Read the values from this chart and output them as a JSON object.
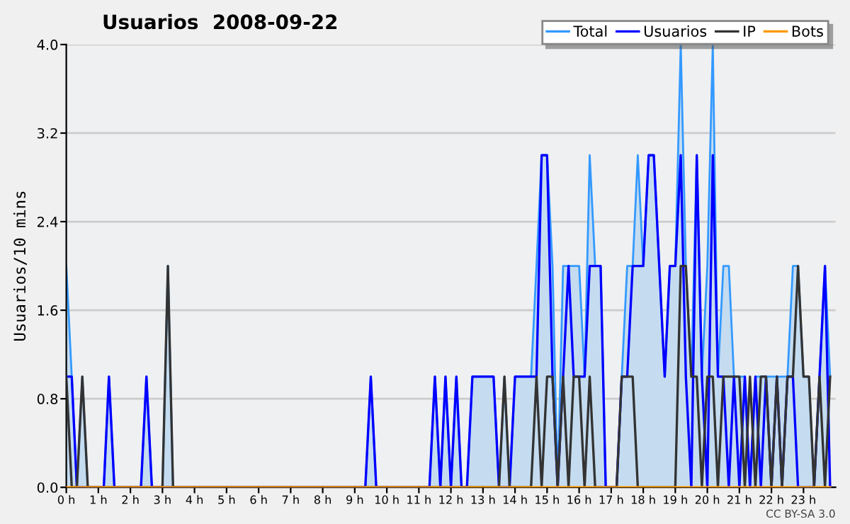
{
  "chart_data": {
    "type": "line",
    "title": "Usuarios  2008-09-22",
    "ylabel": "Usuarios/10 mins",
    "annotations": [
      "CC BY-SA 3.0"
    ],
    "x": [
      0,
      0.17,
      0.33,
      0.5,
      0.67,
      0.83,
      1,
      1.17,
      1.33,
      1.5,
      1.67,
      1.83,
      2,
      2.17,
      2.33,
      2.5,
      2.67,
      2.83,
      3,
      3.17,
      3.33,
      3.5,
      3.67,
      3.83,
      4,
      4.17,
      4.33,
      4.5,
      4.67,
      4.83,
      5,
      5.17,
      5.33,
      5.5,
      5.67,
      5.83,
      6,
      6.17,
      6.33,
      6.5,
      6.67,
      6.83,
      7,
      7.17,
      7.33,
      7.5,
      7.67,
      7.83,
      8,
      8.17,
      8.33,
      8.5,
      8.67,
      8.83,
      9,
      9.17,
      9.33,
      9.5,
      9.67,
      9.83,
      10,
      10.17,
      10.33,
      10.5,
      10.67,
      10.83,
      11,
      11.17,
      11.33,
      11.5,
      11.67,
      11.83,
      12,
      12.17,
      12.33,
      12.5,
      12.67,
      12.83,
      13,
      13.17,
      13.33,
      13.5,
      13.67,
      13.83,
      14,
      14.17,
      14.33,
      14.5,
      14.67,
      14.83,
      15,
      15.17,
      15.33,
      15.5,
      15.67,
      15.83,
      16,
      16.17,
      16.33,
      16.5,
      16.67,
      16.83,
      17,
      17.17,
      17.33,
      17.5,
      17.67,
      17.83,
      18,
      18.17,
      18.33,
      18.5,
      18.67,
      18.83,
      19,
      19.17,
      19.33,
      19.5,
      19.67,
      19.83,
      20,
      20.17,
      20.33,
      20.5,
      20.67,
      20.83,
      21,
      21.17,
      21.33,
      21.5,
      21.67,
      21.83,
      22,
      22.17,
      22.33,
      22.5,
      22.67,
      22.83,
      23,
      23.17,
      23.33,
      23.5,
      23.67,
      23.83
    ],
    "series": [
      {
        "name": "Total",
        "type": "area",
        "color": "#3399ff",
        "values": [
          2,
          1,
          0,
          1,
          0,
          0,
          0,
          0,
          1,
          0,
          0,
          0,
          0,
          0,
          0,
          1,
          0,
          0,
          0,
          2,
          0,
          0,
          0,
          0,
          0,
          0,
          0,
          0,
          0,
          0,
          0,
          0,
          0,
          0,
          0,
          0,
          0,
          0,
          0,
          0,
          0,
          0,
          0,
          0,
          0,
          0,
          0,
          0,
          0,
          0,
          0,
          0,
          0,
          0,
          0,
          0,
          0,
          1,
          0,
          0,
          0,
          0,
          0,
          0,
          0,
          0,
          0,
          0,
          0,
          1,
          0,
          1,
          0,
          1,
          0,
          0,
          1,
          1,
          1,
          1,
          1,
          0,
          1,
          0,
          1,
          1,
          1,
          1,
          2,
          3,
          3,
          2,
          0,
          2,
          2,
          2,
          2,
          1,
          3,
          2,
          2,
          0,
          0,
          0,
          1,
          2,
          2,
          3,
          2,
          3,
          3,
          2,
          1,
          2,
          2,
          4,
          2,
          1,
          3,
          1,
          2,
          4,
          1,
          2,
          2,
          1,
          1,
          1,
          0,
          1,
          1,
          1,
          1,
          1,
          1,
          1,
          2,
          2,
          1,
          1,
          0,
          1,
          2,
          1
        ]
      },
      {
        "name": "Usuarios",
        "color": "#0000ff",
        "values": [
          1,
          1,
          0,
          0,
          0,
          0,
          0,
          0,
          1,
          0,
          0,
          0,
          0,
          0,
          0,
          1,
          0,
          0,
          0,
          0,
          0,
          0,
          0,
          0,
          0,
          0,
          0,
          0,
          0,
          0,
          0,
          0,
          0,
          0,
          0,
          0,
          0,
          0,
          0,
          0,
          0,
          0,
          0,
          0,
          0,
          0,
          0,
          0,
          0,
          0,
          0,
          0,
          0,
          0,
          0,
          0,
          0,
          1,
          0,
          0,
          0,
          0,
          0,
          0,
          0,
          0,
          0,
          0,
          0,
          1,
          0,
          1,
          0,
          1,
          0,
          0,
          1,
          1,
          1,
          1,
          1,
          0,
          0,
          0,
          1,
          1,
          1,
          1,
          1,
          3,
          3,
          1,
          0,
          1,
          2,
          1,
          1,
          1,
          2,
          2,
          2,
          0,
          0,
          0,
          1,
          1,
          2,
          2,
          2,
          3,
          3,
          2,
          1,
          2,
          2,
          3,
          1,
          0,
          3,
          1,
          0,
          3,
          1,
          1,
          0,
          1,
          0,
          1,
          0,
          1,
          0,
          1,
          0,
          1,
          0,
          1,
          1,
          0,
          0,
          0,
          0,
          1,
          2,
          0
        ]
      },
      {
        "name": "IP",
        "color": "#333333",
        "values": [
          1,
          0,
          0,
          1,
          0,
          0,
          0,
          0,
          0,
          0,
          0,
          0,
          0,
          0,
          0,
          0,
          0,
          0,
          0,
          2,
          0,
          0,
          0,
          0,
          0,
          0,
          0,
          0,
          0,
          0,
          0,
          0,
          0,
          0,
          0,
          0,
          0,
          0,
          0,
          0,
          0,
          0,
          0,
          0,
          0,
          0,
          0,
          0,
          0,
          0,
          0,
          0,
          0,
          0,
          0,
          0,
          0,
          0,
          0,
          0,
          0,
          0,
          0,
          0,
          0,
          0,
          0,
          0,
          0,
          0,
          0,
          0,
          0,
          0,
          0,
          0,
          0,
          0,
          0,
          0,
          0,
          0,
          1,
          0,
          0,
          0,
          0,
          0,
          1,
          0,
          1,
          1,
          0,
          1,
          0,
          1,
          1,
          0,
          1,
          0,
          0,
          0,
          0,
          0,
          1,
          1,
          1,
          0,
          0,
          0,
          0,
          0,
          0,
          0,
          0,
          2,
          2,
          1,
          1,
          0,
          1,
          1,
          0,
          1,
          1,
          1,
          1,
          0,
          1,
          0,
          1,
          1,
          0,
          1,
          0,
          1,
          1,
          2,
          1,
          1,
          0,
          1,
          0,
          1
        ]
      },
      {
        "name": "Bots",
        "color": "#ff9900",
        "values": [
          0,
          0,
          0,
          0,
          0,
          0,
          0,
          0,
          0,
          0,
          0,
          0,
          0,
          0,
          0,
          0,
          0,
          0,
          0,
          0,
          0,
          0,
          0,
          0,
          0,
          0,
          0,
          0,
          0,
          0,
          0,
          0,
          0,
          0,
          0,
          0,
          0,
          0,
          0,
          0,
          0,
          0,
          0,
          0,
          0,
          0,
          0,
          0,
          0,
          0,
          0,
          0,
          0,
          0,
          0,
          0,
          0,
          0,
          0,
          0,
          0,
          0,
          0,
          0,
          0,
          0,
          0,
          0,
          0,
          0,
          0,
          0,
          0,
          0,
          0,
          0,
          0,
          0,
          0,
          0,
          0,
          0,
          0,
          0,
          0,
          0,
          0,
          0,
          0,
          0,
          0,
          0,
          0,
          0,
          0,
          0,
          0,
          0,
          0,
          0,
          0,
          0,
          0,
          0,
          0,
          0,
          0,
          0,
          0,
          0,
          0,
          0,
          0,
          0,
          0,
          0,
          0,
          0,
          0,
          0,
          0,
          0,
          0,
          0,
          0,
          0,
          0,
          0,
          0,
          0,
          0,
          0,
          0,
          0,
          0,
          0,
          0,
          0,
          0,
          0,
          0,
          0,
          0,
          0
        ]
      }
    ],
    "xlim": [
      0,
      24
    ],
    "xticks": [
      {
        "value": 0,
        "label": "0 h"
      },
      {
        "value": 1,
        "label": "1 h"
      },
      {
        "value": 2,
        "label": "2 h"
      },
      {
        "value": 3,
        "label": "3 h"
      },
      {
        "value": 4,
        "label": "4 h"
      },
      {
        "value": 5,
        "label": "5 h"
      },
      {
        "value": 6,
        "label": "6 h"
      },
      {
        "value": 7,
        "label": "7 h"
      },
      {
        "value": 8,
        "label": "8 h"
      },
      {
        "value": 9,
        "label": "9 h"
      },
      {
        "value": 10,
        "label": "10 h"
      },
      {
        "value": 11,
        "label": "11 h"
      },
      {
        "value": 12,
        "label": "12 h"
      },
      {
        "value": 13,
        "label": "13 h"
      },
      {
        "value": 14,
        "label": "14 h"
      },
      {
        "value": 15,
        "label": "15 h"
      },
      {
        "value": 16,
        "label": "16 h"
      },
      {
        "value": 17,
        "label": "17 h"
      },
      {
        "value": 18,
        "label": "18 h"
      },
      {
        "value": 19,
        "label": "19 h"
      },
      {
        "value": 20,
        "label": "20 h"
      },
      {
        "value": 21,
        "label": "21 h"
      },
      {
        "value": 22,
        "label": "22 h"
      },
      {
        "value": 23,
        "label": "23 h"
      }
    ],
    "ylim": [
      0,
      4
    ],
    "yticks": [
      {
        "value": 0,
        "label": "0.0"
      },
      {
        "value": 0.8,
        "label": "0.8"
      },
      {
        "value": 1.6,
        "label": "1.6"
      },
      {
        "value": 2.4,
        "label": "2.4"
      },
      {
        "value": 3.2,
        "label": "3.2"
      },
      {
        "value": 4,
        "label": "4.0"
      }
    ],
    "grid": "y",
    "legend": "top right",
    "marker": "none",
    "line_style": "solid"
  }
}
